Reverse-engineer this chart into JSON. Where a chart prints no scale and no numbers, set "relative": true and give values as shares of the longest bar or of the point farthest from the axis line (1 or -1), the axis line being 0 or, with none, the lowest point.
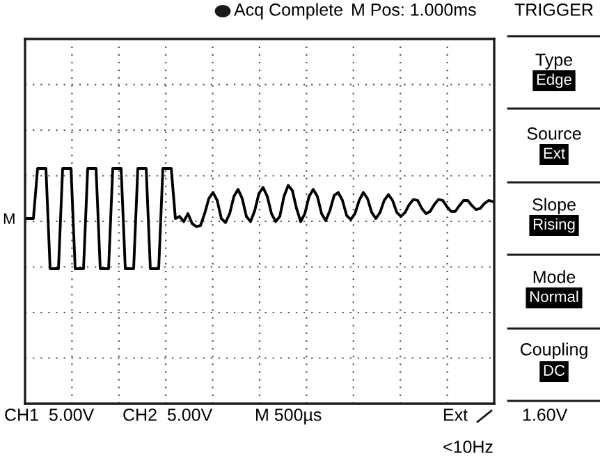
{
  "chart_data": {
    "type": "line",
    "relative": true,
    "grid": true,
    "categories": [
      null,
      null,
      null,
      null,
      null,
      null,
      null,
      null,
      null,
      null,
      null,
      null,
      null,
      null,
      null,
      null,
      null,
      null,
      null,
      null,
      null,
      null,
      null,
      null,
      null,
      null,
      null,
      null,
      null,
      null,
      null,
      null,
      null,
      null,
      null,
      null,
      null,
      null,
      null,
      null,
      null,
      null,
      null,
      null,
      null,
      null,
      null,
      null,
      null,
      null,
      null,
      null,
      null,
      null,
      null,
      null,
      null,
      null,
      null,
      null,
      null,
      null,
      null,
      null,
      null,
      null,
      null,
      null,
      null,
      null,
      null,
      null,
      null,
      null,
      null,
      null,
      null,
      null,
      null,
      null,
      null,
      null,
      null,
      null,
      null,
      null,
      null,
      null,
      null,
      null,
      null,
      null,
      null,
      null,
      null,
      null,
      null,
      null,
      null,
      null,
      null,
      null,
      null,
      null,
      null,
      null,
      null,
      null,
      null,
      null,
      null,
      null,
      null
    ],
    "series": [
      {
        "color": "#000000",
        "values": [
          0.787,
          0.787,
          0.787,
          1,
          1,
          1,
          0.574,
          0.574,
          0.574,
          1,
          1,
          1,
          0.574,
          0.574,
          0.574,
          1,
          1,
          1,
          0.574,
          0.574,
          0.574,
          1,
          1,
          1,
          0.574,
          0.574,
          0.574,
          1,
          1,
          1,
          0.574,
          0.574,
          0.574,
          1,
          1,
          1,
          0.787,
          0.796,
          0.774,
          0.808,
          0.766,
          0.753,
          0.757,
          0.808,
          0.872,
          0.898,
          0.864,
          0.787,
          0.77,
          0.808,
          0.881,
          0.911,
          0.872,
          0.796,
          0.774,
          0.821,
          0.894,
          0.919,
          0.881,
          0.808,
          0.774,
          0.796,
          0.881,
          0.928,
          0.906,
          0.83,
          0.774,
          0.808,
          0.881,
          0.911,
          0.881,
          0.808,
          0.778,
          0.821,
          0.885,
          0.898,
          0.864,
          0.8,
          0.783,
          0.808,
          0.864,
          0.898,
          0.872,
          0.813,
          0.787,
          0.813,
          0.864,
          0.889,
          0.864,
          0.813,
          0.796,
          0.813,
          0.847,
          0.868,
          0.864,
          0.83,
          0.808,
          0.817,
          0.847,
          0.868,
          0.864,
          0.838,
          0.817,
          0.817,
          0.842,
          0.864,
          0.864,
          0.842,
          0.825,
          0.83,
          0.851,
          0.864,
          0.859
        ]
      }
    ],
    "annotations": [
      "Acq Complete",
      "M Pos: 1.000ms",
      "TRIGGER",
      "Type",
      "Edge",
      "Source",
      "Ext",
      "Slope",
      "Rising",
      "Mode",
      "Normal",
      "Coupling",
      "DC",
      "CH1  5.00V",
      "CH2  5.00V",
      "M 500µs",
      "Ext",
      "1.60V",
      "<10Hz",
      "M"
    ]
  }
}
